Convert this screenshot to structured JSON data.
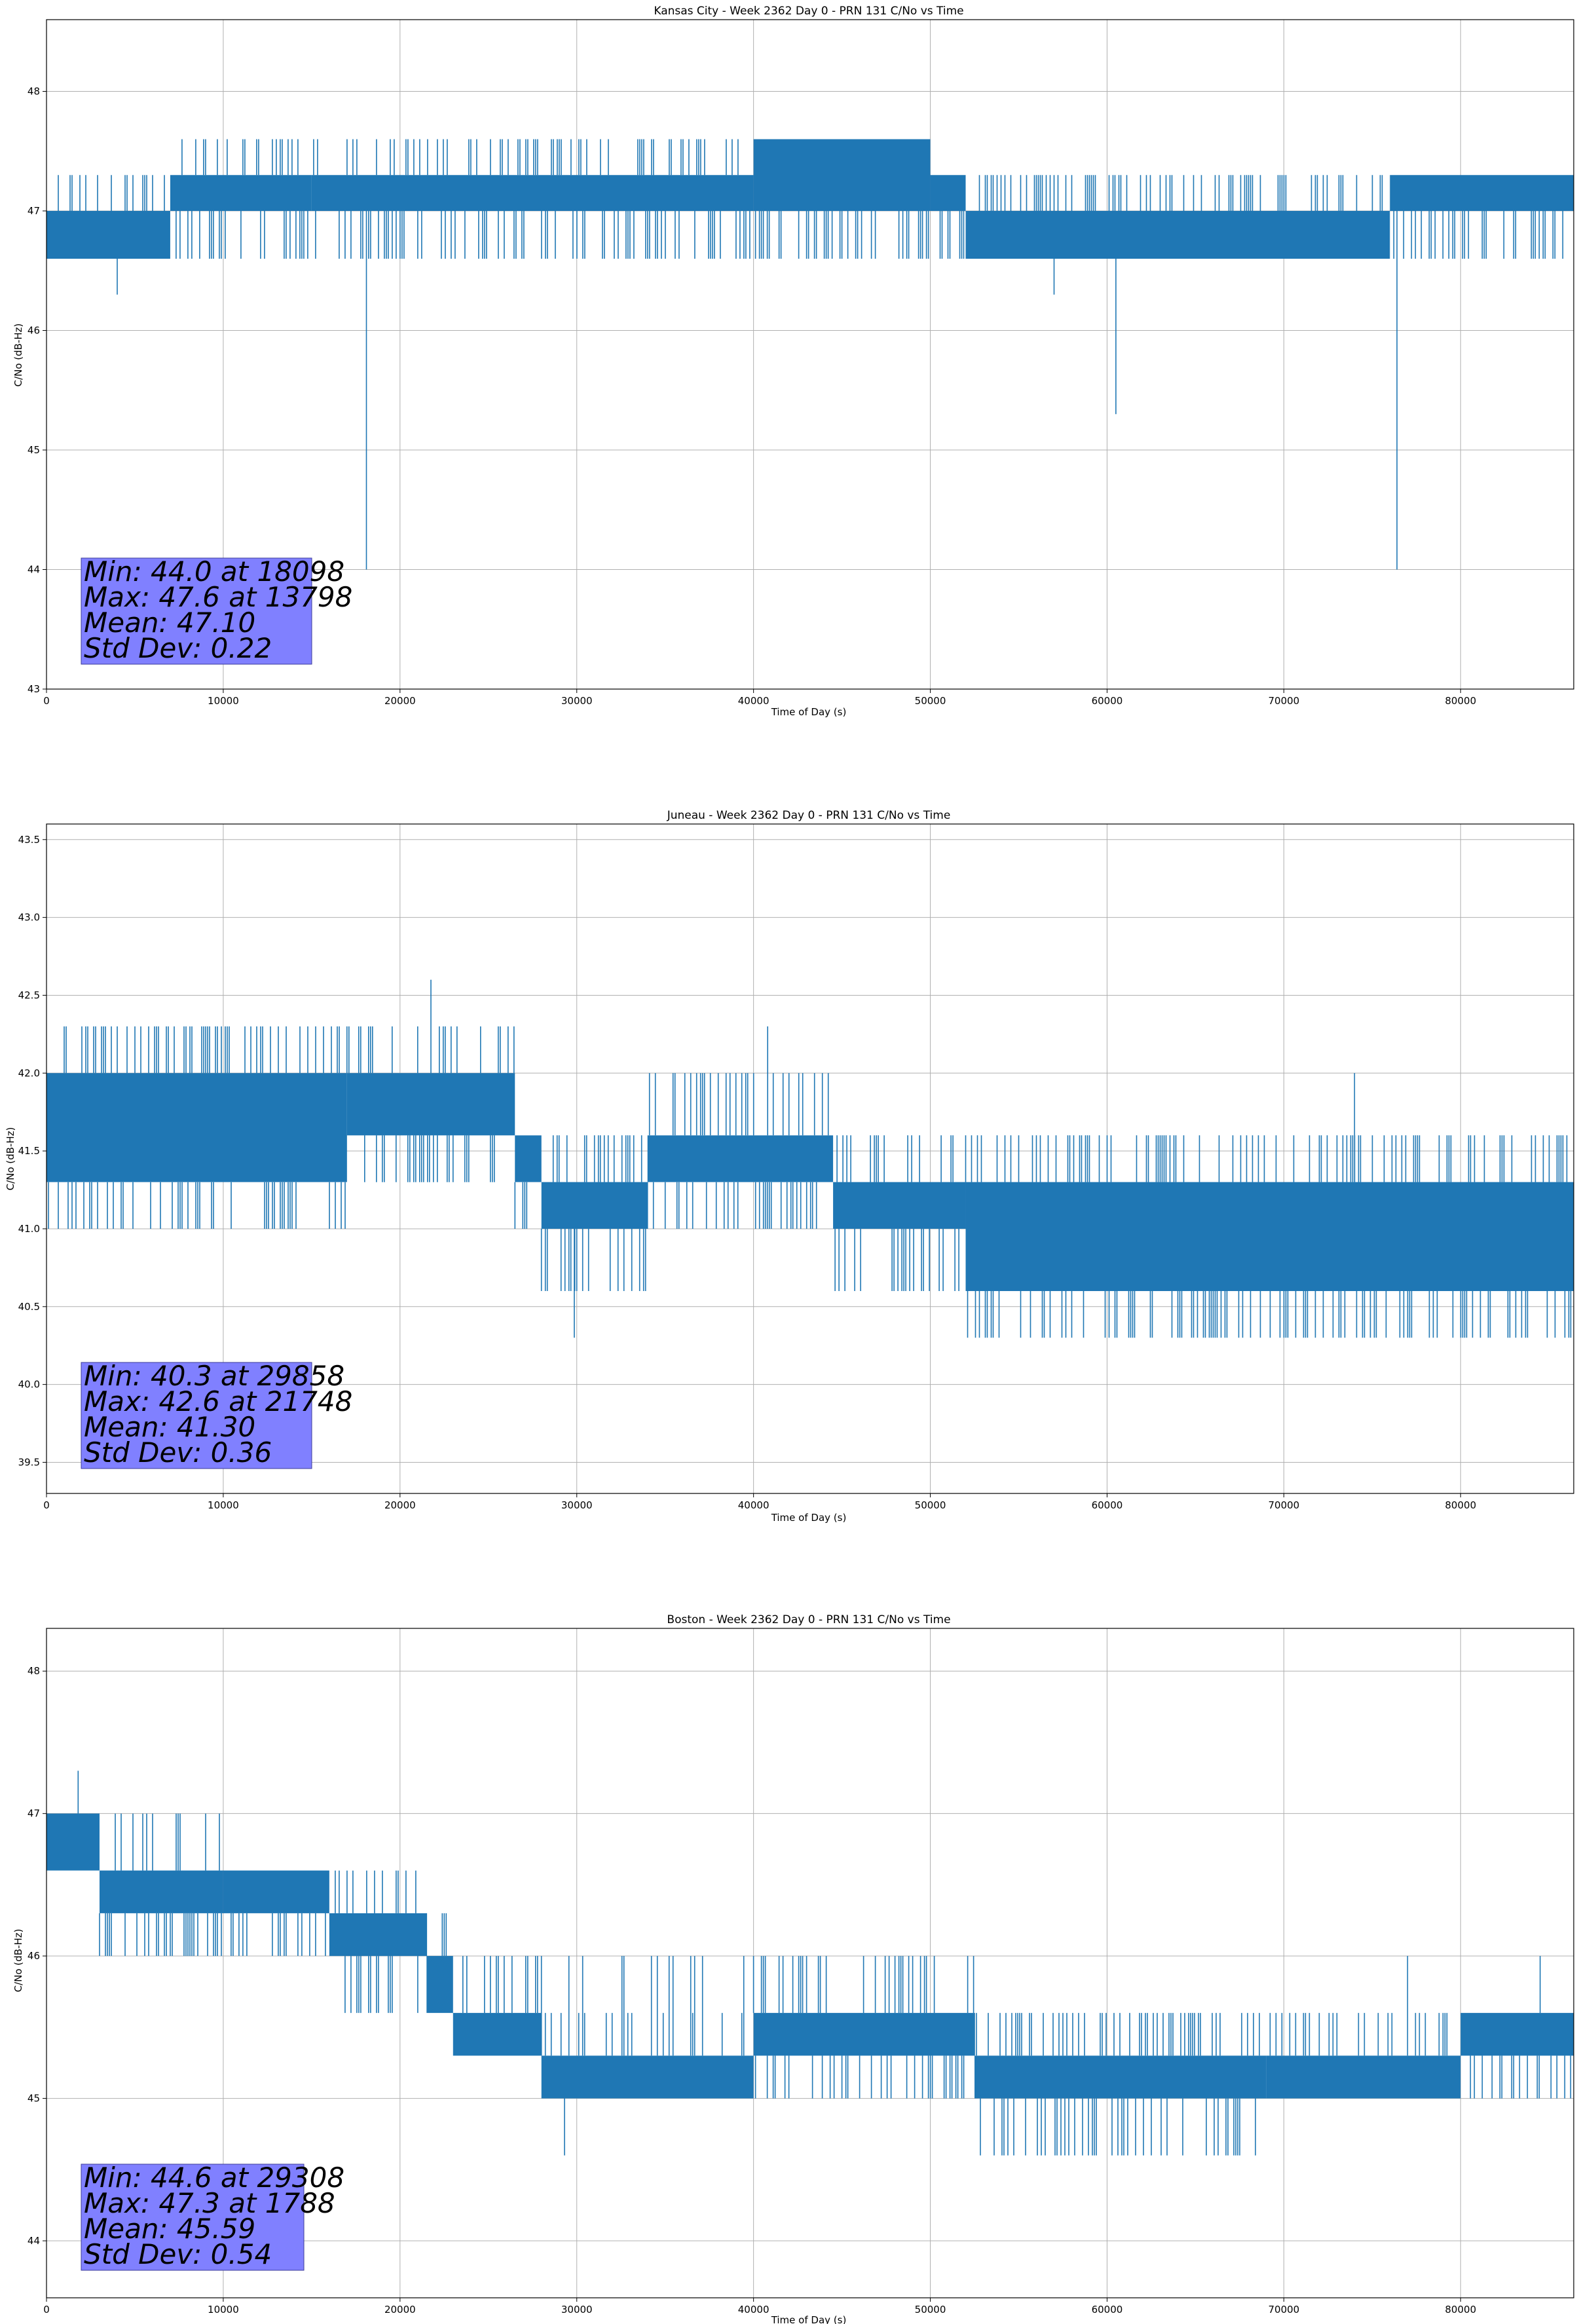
{
  "chart_data": [
    {
      "type": "line",
      "title": "Kansas City - Week 2362 Day 0 - PRN 131 C/No vs Time",
      "xlabel": "Time of Day (s)",
      "ylabel": "C/No (dB-Hz)",
      "xlim": [
        0,
        86400
      ],
      "ylim": [
        43,
        48.6
      ],
      "xticks": [
        0,
        10000,
        20000,
        30000,
        40000,
        50000,
        60000,
        70000,
        80000
      ],
      "yticks": [
        43,
        44,
        45,
        46,
        47,
        48
      ],
      "ytick_labels": [
        "43",
        "44",
        "45",
        "46",
        "47",
        "48"
      ],
      "grid": true,
      "color": "#1f77b4",
      "levels": [
        46.6,
        47.0,
        47.3,
        47.6
      ],
      "segments": [
        {
          "x": [
            0,
            7000
          ],
          "band": [
            46.6,
            47.0
          ],
          "up": [
            47.3
          ],
          "down": []
        },
        {
          "x": [
            7000,
            15000
          ],
          "band": [
            47.0,
            47.3
          ],
          "up": [
            47.6
          ],
          "down": [
            46.6
          ]
        },
        {
          "x": [
            15000,
            40000
          ],
          "band": [
            47.0,
            47.3
          ],
          "up": [
            47.6
          ],
          "down": [
            46.6
          ]
        },
        {
          "x": [
            40000,
            50000
          ],
          "band": [
            47.0,
            47.6
          ],
          "up": [],
          "down": [
            46.6
          ]
        },
        {
          "x": [
            50000,
            52000
          ],
          "band": [
            47.0,
            47.3
          ],
          "up": [],
          "down": [
            46.6
          ]
        },
        {
          "x": [
            52000,
            76000
          ],
          "band": [
            46.6,
            47.0
          ],
          "up": [
            47.3
          ],
          "down": []
        },
        {
          "x": [
            76000,
            86400
          ],
          "band": [
            47.0,
            47.3
          ],
          "up": [],
          "down": [
            46.6
          ]
        }
      ],
      "spikes": [
        [
          4000,
          46.3
        ],
        [
          18098,
          44.0
        ],
        [
          57000,
          46.3
        ],
        [
          60500,
          45.3
        ],
        [
          76400,
          44.0
        ]
      ],
      "stats": {
        "min": "Min: 44.0 at 18098",
        "max": "Max: 47.6 at 13798",
        "mean": "Mean: 47.10",
        "std": "Std Dev: 0.22"
      }
    },
    {
      "type": "line",
      "title": "Juneau - Week 2362 Day 0 - PRN 131 C/No vs Time",
      "xlabel": "Time of Day (s)",
      "ylabel": "C/No (dB-Hz)",
      "xlim": [
        0,
        86400
      ],
      "ylim": [
        39.3,
        43.6
      ],
      "xticks": [
        0,
        10000,
        20000,
        30000,
        40000,
        50000,
        60000,
        70000,
        80000
      ],
      "yticks": [
        39.5,
        40.0,
        40.5,
        41.0,
        41.5,
        42.0,
        42.5,
        43.0,
        43.5
      ],
      "ytick_labels": [
        "39.5",
        "40.0",
        "40.5",
        "41.0",
        "41.5",
        "42.0",
        "42.5",
        "43.0",
        "43.5"
      ],
      "grid": true,
      "color": "#1f77b4",
      "segments": [
        {
          "x": [
            0,
            17000
          ],
          "band": [
            41.3,
            42.0
          ],
          "up": [
            42.3
          ],
          "down": [
            41.0
          ]
        },
        {
          "x": [
            17000,
            26500
          ],
          "band": [
            41.6,
            42.0
          ],
          "up": [
            42.3
          ],
          "down": [
            41.3
          ]
        },
        {
          "x": [
            26500,
            28000
          ],
          "band": [
            41.3,
            41.6
          ],
          "up": [],
          "down": [
            41.0
          ]
        },
        {
          "x": [
            28000,
            34000
          ],
          "band": [
            41.0,
            41.3
          ],
          "up": [
            41.6
          ],
          "down": [
            40.6
          ]
        },
        {
          "x": [
            34000,
            44500
          ],
          "band": [
            41.3,
            41.6
          ],
          "up": [
            42.0
          ],
          "down": [
            41.0
          ]
        },
        {
          "x": [
            44500,
            52000
          ],
          "band": [
            41.0,
            41.3
          ],
          "up": [
            41.6
          ],
          "down": [
            40.6
          ]
        },
        {
          "x": [
            52000,
            86400
          ],
          "band": [
            40.6,
            41.3
          ],
          "up": [
            41.6
          ],
          "down": [
            40.3
          ]
        }
      ],
      "spikes": [
        [
          21748,
          42.6
        ],
        [
          29858,
          40.3
        ],
        [
          40800,
          42.3
        ],
        [
          74000,
          42.0
        ]
      ],
      "stats": {
        "min": "Min: 40.3 at 29858",
        "max": "Max: 42.6 at 21748",
        "mean": "Mean: 41.30",
        "std": "Std Dev: 0.36"
      }
    },
    {
      "type": "line",
      "title": "Boston - Week 2362 Day 0 - PRN 131 C/No vs Time",
      "xlabel": "Time of Day (s)",
      "ylabel": "C/No (dB-Hz)",
      "xlim": [
        0,
        86400
      ],
      "ylim": [
        43.6,
        48.3
      ],
      "xticks": [
        0,
        10000,
        20000,
        30000,
        40000,
        50000,
        60000,
        70000,
        80000
      ],
      "yticks": [
        44,
        45,
        46,
        47,
        48
      ],
      "ytick_labels": [
        "44",
        "45",
        "46",
        "47",
        "48"
      ],
      "grid": true,
      "color": "#1f77b4",
      "segments": [
        {
          "x": [
            0,
            3000
          ],
          "band": [
            46.6,
            47.0
          ],
          "up": [],
          "down": []
        },
        {
          "x": [
            3000,
            10000
          ],
          "band": [
            46.3,
            46.6
          ],
          "up": [
            47.0
          ],
          "down": [
            46.0
          ]
        },
        {
          "x": [
            10000,
            16000
          ],
          "band": [
            46.3,
            46.6
          ],
          "up": [],
          "down": [
            46.0
          ]
        },
        {
          "x": [
            16000,
            21500
          ],
          "band": [
            46.0,
            46.3
          ],
          "up": [
            46.6
          ],
          "down": [
            45.6
          ]
        },
        {
          "x": [
            21500,
            23000
          ],
          "band": [
            45.6,
            46.0
          ],
          "up": [
            46.3
          ],
          "down": []
        },
        {
          "x": [
            23000,
            28000
          ],
          "band": [
            45.3,
            45.6
          ],
          "up": [
            46.0
          ],
          "down": []
        },
        {
          "x": [
            28000,
            40000
          ],
          "band": [
            45.0,
            45.3
          ],
          "up": [
            45.6,
            46.0
          ],
          "down": []
        },
        {
          "x": [
            40000,
            52500
          ],
          "band": [
            45.3,
            45.6
          ],
          "up": [
            46.0
          ],
          "down": [
            45.0
          ]
        },
        {
          "x": [
            52500,
            69000
          ],
          "band": [
            45.0,
            45.3
          ],
          "up": [
            45.6
          ],
          "down": [
            44.6
          ]
        },
        {
          "x": [
            69000,
            80000
          ],
          "band": [
            45.0,
            45.3
          ],
          "up": [
            45.6
          ],
          "down": []
        },
        {
          "x": [
            80000,
            86400
          ],
          "band": [
            45.3,
            45.6
          ],
          "up": [],
          "down": [
            45.0
          ]
        }
      ],
      "spikes": [
        [
          1788,
          47.3
        ],
        [
          29308,
          44.6
        ],
        [
          77000,
          46.0
        ],
        [
          84500,
          46.0
        ]
      ],
      "stats": {
        "min": "Min: 44.6 at 29308",
        "max": "Max: 47.3 at 1788",
        "mean": "Mean: 45.59",
        "std": "Std Dev: 0.54"
      }
    }
  ]
}
